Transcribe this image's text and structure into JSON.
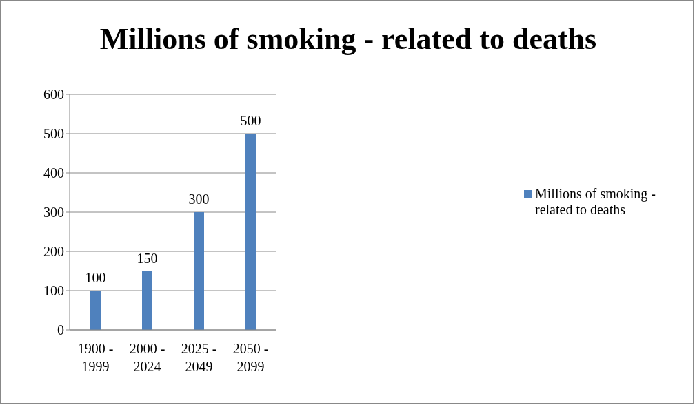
{
  "chart_data": {
    "type": "bar",
    "title": "Millions of smoking - related to deaths",
    "categories": [
      "1900 - 1999",
      "2000 - 2024",
      "2025 - 2049",
      "2050 - 2099"
    ],
    "series": [
      {
        "name": "Millions of smoking - related to deaths",
        "color": "#4f81bd",
        "values": [
          100,
          150,
          300,
          500
        ]
      }
    ],
    "ylim": [
      0,
      600
    ],
    "yticks": [
      0,
      100,
      200,
      300,
      400,
      500,
      600
    ],
    "grid": "y",
    "legend": "right",
    "data_labels": true
  }
}
